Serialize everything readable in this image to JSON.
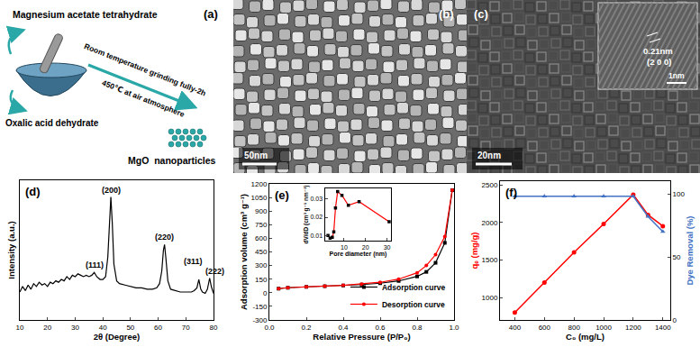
{
  "panels": {
    "a": {
      "label": "(a)",
      "reagent_1": "Magnesium acetate tetrahydrate",
      "reagent_2": "Oxalic acid dehydrate",
      "step_1": "Room temperature grinding fully-2h",
      "step_2": "450℃ at air atmosphere",
      "product": "MgO  nanoparticles"
    },
    "b": {
      "label": "(b)",
      "scale_bar": "50nm"
    },
    "c": {
      "label": "(c)",
      "scale_bar": "20nm",
      "inset_scale_bar": "1nm",
      "lattice_spacing": "0.21nm",
      "plane": "(2 0 0)"
    }
  },
  "chart_data": [
    {
      "label": "(d)",
      "type": "line",
      "x_label": "2θ (Degree)",
      "y_label": "Intensity (a.u.)",
      "color": "#000000",
      "x": [
        10,
        11,
        12,
        13,
        14,
        15,
        16,
        17,
        18,
        19,
        20,
        21,
        22,
        23,
        24,
        25,
        26,
        27,
        28,
        29,
        30,
        31,
        32,
        33,
        34,
        35,
        36,
        36.9,
        37.8,
        39,
        40,
        41,
        41.8,
        42.4,
        42.9,
        43.4,
        44,
        45,
        46,
        48,
        50,
        52,
        54,
        56,
        58,
        59.5,
        60.5,
        61.3,
        61.9,
        62.3,
        62.8,
        63.5,
        64.5,
        66,
        68,
        70,
        72,
        73,
        74,
        74.7,
        75.4,
        76,
        77,
        77.8,
        78.6,
        79.2,
        80
      ],
      "values": [
        20,
        24,
        21,
        25,
        22,
        26,
        24,
        27,
        25,
        26,
        24,
        27,
        26,
        28,
        27,
        29,
        28,
        31,
        29,
        32,
        31,
        33,
        32,
        31,
        32,
        31,
        32,
        34,
        31,
        29,
        29,
        31,
        45,
        75,
        88,
        70,
        40,
        28,
        26,
        25,
        24,
        23,
        23,
        22,
        22,
        23,
        26,
        35,
        50,
        54,
        44,
        28,
        22,
        21,
        20,
        20,
        20,
        21,
        23,
        29,
        22,
        20,
        19,
        22,
        30,
        24,
        19
      ],
      "xlim": [
        10,
        80
      ],
      "xticks": [
        10,
        20,
        30,
        40,
        50,
        60,
        70,
        80
      ],
      "ylim": [
        0,
        100
      ],
      "tick_labels": "x",
      "annotations": [
        {
          "text": "(111)",
          "x": 36.9,
          "y": 34
        },
        {
          "text": "(200)",
          "x": 42.9,
          "y": 88
        },
        {
          "text": "(220)",
          "x": 62.3,
          "y": 54
        },
        {
          "text": "(311)",
          "x": 74.7,
          "y": 29
        },
        {
          "text": "(222)",
          "x": 78.6,
          "y": 30
        }
      ]
    },
    {
      "label": "(e)",
      "type": "line",
      "x_label": "Relative Pressure (P/P₀)",
      "y_label": "Adsorption volume (cm³ g⁻¹)",
      "xlim": [
        0,
        1
      ],
      "xticks": [
        {
          "value": 0,
          "label": "0.0"
        },
        {
          "value": 0.2,
          "label": "0.2"
        },
        {
          "value": 0.4,
          "label": "0.4"
        },
        {
          "value": 0.6,
          "label": "0.6"
        },
        {
          "value": 0.8,
          "label": "0.8"
        },
        {
          "value": 1,
          "label": "1.0"
        }
      ],
      "ylim": [
        -300,
        1200
      ],
      "yticks": [
        -300,
        -150,
        0,
        150,
        300,
        450,
        600,
        750,
        900,
        1050,
        1200
      ],
      "legend": "bottom right",
      "series": [
        {
          "name": "Adsorption curve",
          "color": "#000000",
          "marker": "square",
          "x": [
            0.05,
            0.1,
            0.2,
            0.3,
            0.4,
            0.5,
            0.6,
            0.7,
            0.8,
            0.85,
            0.9,
            0.95,
            0.99
          ],
          "values": [
            45,
            55,
            65,
            72,
            80,
            90,
            105,
            130,
            180,
            230,
            330,
            550,
            1130
          ]
        },
        {
          "name": "Desorption curve",
          "color": "#ff0000",
          "marker": "circle",
          "x": [
            0.99,
            0.95,
            0.9,
            0.85,
            0.8,
            0.7,
            0.6,
            0.5,
            0.4,
            0.3,
            0.2,
            0.1,
            0.05
          ],
          "values": [
            1130,
            620,
            420,
            300,
            220,
            150,
            115,
            95,
            82,
            73,
            65,
            55,
            45
          ]
        }
      ],
      "inset": {
        "type": "line",
        "x_label": "Pore diameter (nm)",
        "y_label": "dV/dD (cm³ g⁻¹ nm⁻¹)",
        "color": "#ff0000",
        "marker": "square",
        "x": [
          2.5,
          3.5,
          4.5,
          5.2,
          6,
          7,
          9,
          12,
          17,
          31
        ],
        "values": [
          0.01,
          0.0085,
          0.009,
          0.012,
          0.025,
          0.034,
          0.032,
          0.0265,
          0.0285,
          0.0175
        ],
        "xlim": [
          1,
          32
        ],
        "xticks": [
          10,
          20,
          30
        ],
        "ylim": [
          0.007,
          0.036
        ],
        "yticks": [
          0.01,
          0.02,
          0.03
        ]
      }
    },
    {
      "label": "(f)",
      "type": "line",
      "x_label": "C₀ (mg/L)",
      "y_label": "qₑ (mg/g)",
      "y2_label": "Dye Removal (%)",
      "x": [
        400,
        600,
        800,
        1000,
        1200,
        1300,
        1400
      ],
      "xlim": [
        300,
        1450
      ],
      "xticks": [
        400,
        600,
        800,
        1000,
        1200,
        1400
      ],
      "ylim": [
        700,
        2550
      ],
      "yticks": [
        1000,
        1500,
        2000,
        2500
      ],
      "y2lim": [
        0,
        110
      ],
      "y2ticks": [
        0,
        50,
        100
      ],
      "series": [
        {
          "color": "#ff0000",
          "marker": "circle",
          "values": [
            800,
            1200,
            1600,
            1980,
            2370,
            2100,
            1950
          ]
        },
        {
          "color": "#4472c4",
          "marker": "triangle",
          "axis": "y2",
          "values": [
            98,
            98,
            98,
            98,
            98,
            82,
            70
          ]
        }
      ]
    }
  ]
}
